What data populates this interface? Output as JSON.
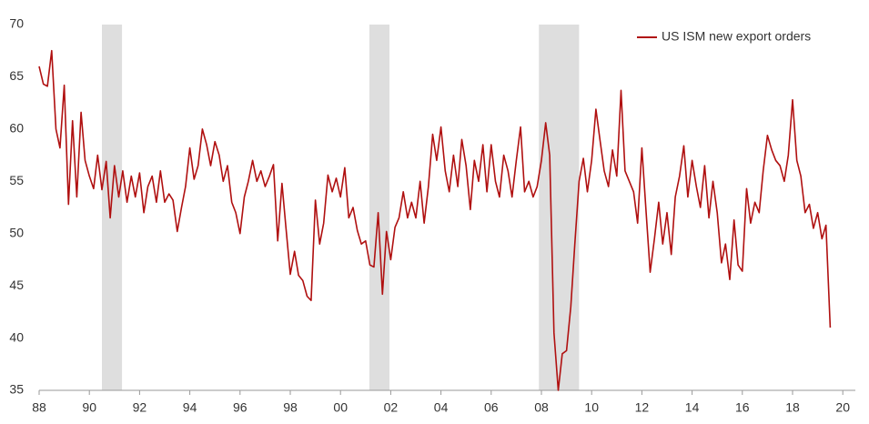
{
  "chart_data": {
    "type": "line",
    "x": [
      1988,
      1988.17,
      1988.33,
      1988.5,
      1988.67,
      1988.83,
      1989,
      1989.17,
      1989.33,
      1989.5,
      1989.67,
      1989.83,
      1990,
      1990.17,
      1990.33,
      1990.5,
      1990.67,
      1990.83,
      1991,
      1991.17,
      1991.33,
      1991.5,
      1991.67,
      1991.83,
      1992,
      1992.17,
      1992.33,
      1992.5,
      1992.67,
      1992.83,
      1993,
      1993.17,
      1993.33,
      1993.5,
      1993.67,
      1993.83,
      1994,
      1994.17,
      1994.33,
      1994.5,
      1994.67,
      1994.83,
      1995,
      1995.17,
      1995.33,
      1995.5,
      1995.67,
      1995.83,
      1996,
      1996.17,
      1996.33,
      1996.5,
      1996.67,
      1996.83,
      1997,
      1997.17,
      1997.33,
      1997.5,
      1997.67,
      1997.83,
      1998,
      1998.17,
      1998.33,
      1998.5,
      1998.67,
      1998.83,
      1999,
      1999.17,
      1999.33,
      1999.5,
      1999.67,
      1999.83,
      2000,
      2000.17,
      2000.33,
      2000.5,
      2000.67,
      2000.83,
      2001,
      2001.17,
      2001.33,
      2001.5,
      2001.67,
      2001.83,
      2002,
      2002.17,
      2002.33,
      2002.5,
      2002.67,
      2002.83,
      2003,
      2003.17,
      2003.33,
      2003.5,
      2003.67,
      2003.83,
      2004,
      2004.17,
      2004.33,
      2004.5,
      2004.67,
      2004.83,
      2005,
      2005.17,
      2005.33,
      2005.5,
      2005.67,
      2005.83,
      2006,
      2006.17,
      2006.33,
      2006.5,
      2006.67,
      2006.83,
      2007,
      2007.17,
      2007.33,
      2007.5,
      2007.67,
      2007.83,
      2008,
      2008.17,
      2008.33,
      2008.5,
      2008.67,
      2008.83,
      2009,
      2009.17,
      2009.33,
      2009.5,
      2009.67,
      2009.83,
      2010,
      2010.17,
      2010.33,
      2010.5,
      2010.67,
      2010.83,
      2011,
      2011.17,
      2011.33,
      2011.5,
      2011.67,
      2011.83,
      2012,
      2012.17,
      2012.33,
      2012.5,
      2012.67,
      2012.83,
      2013,
      2013.17,
      2013.33,
      2013.5,
      2013.67,
      2013.83,
      2014,
      2014.17,
      2014.33,
      2014.5,
      2014.67,
      2014.83,
      2015,
      2015.17,
      2015.33,
      2015.5,
      2015.67,
      2015.83,
      2016,
      2016.17,
      2016.33,
      2016.5,
      2016.67,
      2016.83,
      2017,
      2017.17,
      2017.33,
      2017.5,
      2017.67,
      2017.83,
      2018,
      2018.17,
      2018.33,
      2018.5,
      2018.67,
      2018.83,
      2019,
      2019.17,
      2019.33,
      2019.5
    ],
    "series": [
      {
        "name": "US ISM new export orders",
        "color": "#b01010",
        "values": [
          66,
          64.3,
          64.1,
          67.5,
          60,
          58.2,
          64.2,
          52.8,
          60.8,
          53.5,
          61.6,
          57,
          55.5,
          54.3,
          57.5,
          54.2,
          56.9,
          51.5,
          56.5,
          53.5,
          56,
          53,
          55.5,
          53.5,
          55.8,
          52,
          54.5,
          55.5,
          53,
          56,
          53,
          53.8,
          53.2,
          50.2,
          52.5,
          54.5,
          58.2,
          55.2,
          56.5,
          60,
          58.5,
          56.5,
          58.8,
          57.5,
          55,
          56.5,
          53,
          52,
          50,
          53.5,
          55,
          57,
          55,
          56,
          54.5,
          55.5,
          56.6,
          49.3,
          54.8,
          50.5,
          46.1,
          48.3,
          46,
          45.5,
          44,
          43.6,
          53.2,
          49,
          51,
          55.6,
          54,
          55.3,
          53.5,
          56.3,
          51.5,
          52.5,
          50.3,
          49,
          49.3,
          47,
          46.8,
          52,
          44.2,
          50.2,
          47.5,
          50.6,
          51.5,
          54,
          51.5,
          53,
          51.5,
          55,
          51,
          54.5,
          59.5,
          57,
          60.2,
          56,
          54,
          57.5,
          54.5,
          59,
          56.5,
          52.3,
          57,
          55,
          58.5,
          54,
          58.5,
          55,
          53.5,
          57.5,
          56,
          53.5,
          57,
          60.2,
          54,
          55,
          53.5,
          54.5,
          57,
          60.6,
          57.5,
          40.5,
          35,
          38.5,
          38.8,
          43,
          49,
          55,
          57.2,
          54,
          57,
          61.9,
          59,
          56,
          54.5,
          58,
          55.5,
          63.7,
          56,
          55,
          54,
          51,
          58.2,
          52,
          46.3,
          49.5,
          53,
          49,
          52,
          48,
          53.5,
          55.5,
          58.4,
          53.5,
          57,
          54.5,
          52.5,
          56.5,
          51.5,
          55,
          52,
          47.2,
          49,
          45.6,
          51.3,
          47,
          46.4,
          54.3,
          51,
          53,
          52,
          56,
          59.4,
          58,
          57,
          56.5,
          55,
          57.5,
          62.8,
          57,
          55.5,
          52,
          52.8,
          50.5,
          52,
          49.5,
          50.8,
          41
        ]
      }
    ],
    "shaded_regions": [
      [
        1990.5,
        1991.3
      ],
      [
        2001.15,
        2001.95
      ],
      [
        2007.9,
        2009.5
      ]
    ],
    "shade_color": "#dedede",
    "xlim": [
      1988,
      2020.5
    ],
    "xticks": [
      {
        "value": 1988,
        "label": "88"
      },
      {
        "value": 1990,
        "label": "90"
      },
      {
        "value": 1992,
        "label": "92"
      },
      {
        "value": 1994,
        "label": "94"
      },
      {
        "value": 1996,
        "label": "96"
      },
      {
        "value": 1998,
        "label": "98"
      },
      {
        "value": 2000,
        "label": "00"
      },
      {
        "value": 2002,
        "label": "02"
      },
      {
        "value": 2004,
        "label": "04"
      },
      {
        "value": 2006,
        "label": "06"
      },
      {
        "value": 2008,
        "label": "08"
      },
      {
        "value": 2010,
        "label": "10"
      },
      {
        "value": 2012,
        "label": "12"
      },
      {
        "value": 2014,
        "label": "14"
      },
      {
        "value": 2016,
        "label": "16"
      },
      {
        "value": 2018,
        "label": "18"
      },
      {
        "value": 2020,
        "label": "20"
      }
    ],
    "ylim": [
      35,
      70
    ],
    "yticks": [
      35,
      40,
      45,
      50,
      55,
      60,
      65,
      70
    ],
    "grid": false,
    "legend": "upper right"
  }
}
